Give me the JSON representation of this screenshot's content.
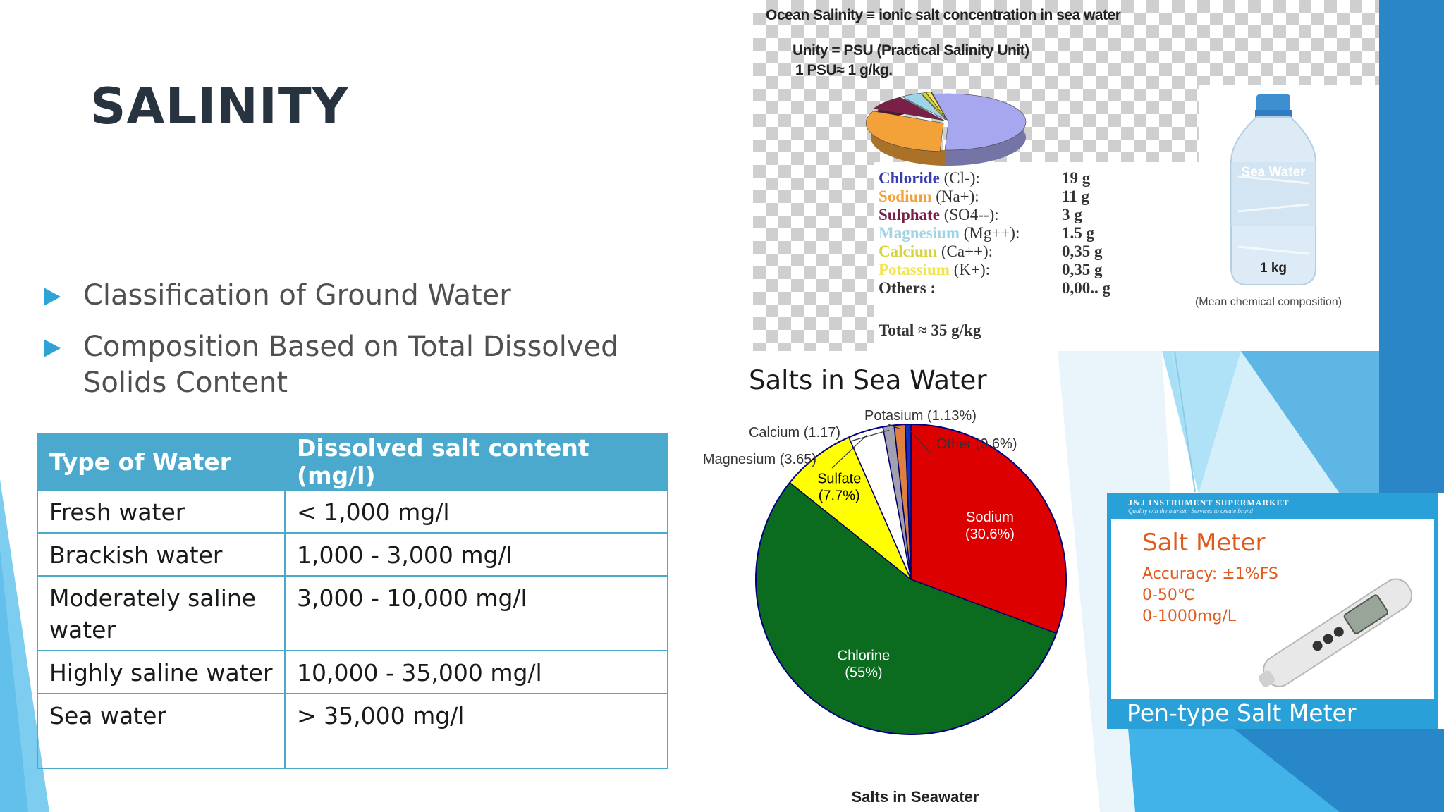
{
  "slide": {
    "title": "SALINITY",
    "bullets": [
      "Classification of Ground Water",
      "Composition Based on Total Dissolved Solids Content"
    ],
    "colors": {
      "accent": "#4aa9cd",
      "bullet": "#2fa3d6",
      "title": "#27343f"
    }
  },
  "table": {
    "headers": [
      "Type of Water",
      "Dissolved salt content (mg/l)"
    ],
    "rows": [
      [
        "Fresh water",
        "< 1,000 mg/l"
      ],
      [
        "Brackish water",
        "1,000 - 3,000 mg/l"
      ],
      [
        "Moderately saline water",
        "3,000 - 10,000 mg/l"
      ],
      [
        "Highly saline water",
        "10,000 - 35,000 mg/l"
      ],
      [
        "Sea water",
        "> 35,000 mg/l"
      ]
    ]
  },
  "ocean_info": {
    "line1": "Ocean Salinity ≡ ionic salt concentration in sea water",
    "line2": "Unity = PSU (Practical Salinity Unit)",
    "line3": "1 PSU≈ 1 g/kg.",
    "bottle_label": "Sea Water",
    "bottle_weight": "1 kg",
    "bottle_caption": "(Mean chemical composition)",
    "total": "Total ≈ 35 g/kg",
    "ions": [
      {
        "name": "Chloride",
        "formula": "(Cl-):",
        "amount": "19 g",
        "color": "#3b3bb0"
      },
      {
        "name": "Sodium",
        "formula": "(Na+):",
        "amount": "11 g",
        "color": "#f3a23a"
      },
      {
        "name": "Sulphate",
        "formula": "(SO4--):",
        "amount": "3 g",
        "color": "#7a1f48"
      },
      {
        "name": "Magnesium",
        "formula": "(Mg++):",
        "amount": "1.5 g",
        "color": "#9fd3e6"
      },
      {
        "name": "Calcium",
        "formula": "(Ca++):",
        "amount": "0,35 g",
        "color": "#d6d43a"
      },
      {
        "name": "Potassium",
        "formula": "(K+):",
        "amount": "0,35 g",
        "color": "#f2e44a"
      },
      {
        "name": "Others :",
        "formula": "",
        "amount": "0,00.. g",
        "color": "#333333"
      }
    ]
  },
  "chart_data": [
    {
      "type": "pie",
      "title": "",
      "labels": [
        "Chloride",
        "Sodium",
        "Sulphate",
        "Magnesium",
        "Calcium",
        "Potassium",
        "Others"
      ],
      "values": [
        19,
        11,
        3,
        1.5,
        0.35,
        0.35,
        0.05
      ],
      "colors": [
        "#a7a7ef",
        "#f3a23a",
        "#7a1f48",
        "#9fd3e6",
        "#d6d43a",
        "#f2e44a",
        "#555555"
      ]
    },
    {
      "type": "pie",
      "title": "Salts in Sea Water",
      "caption": "Salts in Seawater",
      "slices": [
        {
          "name": "Sodium",
          "value": 30.6,
          "label": "Sodium (30.6%)",
          "color": "#dd0000"
        },
        {
          "name": "Chlorine",
          "value": 55,
          "label": "Chlorine (55%)",
          "color": "#0b6b1e"
        },
        {
          "name": "Sulfate",
          "value": 7.7,
          "label": "Sulfate (7.7%)",
          "color": "#ffff00"
        },
        {
          "name": "Magnesium",
          "value": 3.65,
          "label": "Magnesium (3.65)",
          "color": "#ffffff"
        },
        {
          "name": "Calcium",
          "value": 1.17,
          "label": "Calcium (1.17)",
          "color": "#a0a0b0"
        },
        {
          "name": "Potasium",
          "value": 1.13,
          "label": "Potasium (1.13%)",
          "color": "#e08040"
        },
        {
          "name": "Other",
          "value": 0.6,
          "label": "Other (0.6%)",
          "color": "#1030c0"
        }
      ]
    }
  ],
  "meter_ad": {
    "brand": "J&J INSTRUMENT SUPERMARKET",
    "tagline": "Quality win the market · Services to create brand",
    "title": "Salt Meter",
    "spec1": "Accuracy: ±1%FS",
    "spec2": "0-50℃",
    "spec3": "0-1000mg/L",
    "footer": "Pen-type Salt Meter"
  }
}
